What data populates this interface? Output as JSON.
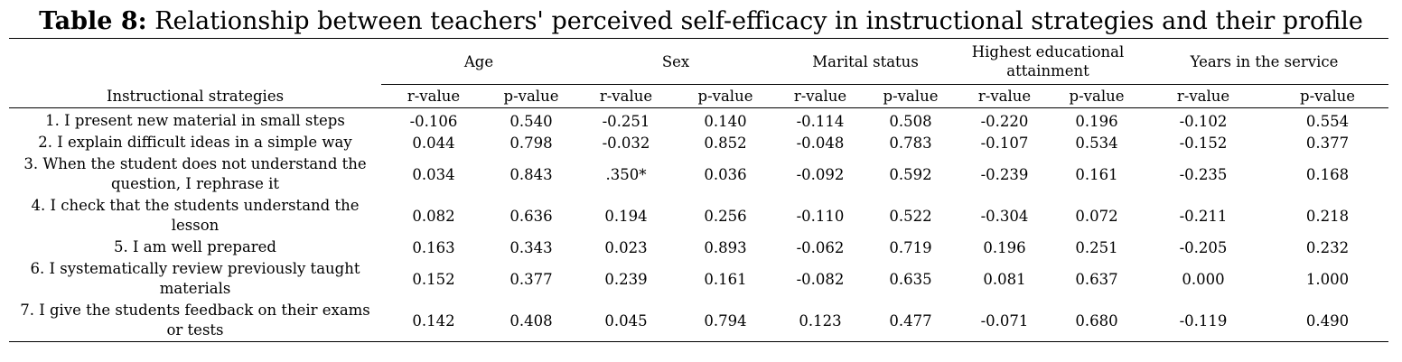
{
  "caption": {
    "label": "Table 8:",
    "text": "Relationship between teachers' perceived self-efficacy in instructional strategies and their profile"
  },
  "header": {
    "row_label": "Instructional strategies",
    "groups": [
      "Age",
      "Sex",
      "Marital status",
      "Highest educational attainment",
      "Years in the service"
    ],
    "sub": [
      "r-value",
      "p-value"
    ]
  },
  "rows": [
    {
      "item": "1. I present new material in small steps",
      "values": [
        "-0.106",
        "0.540",
        "-0.251",
        "0.140",
        "-0.114",
        "0.508",
        "-0.220",
        "0.196",
        "-0.102",
        "0.554"
      ]
    },
    {
      "item": "2. I explain difficult ideas in a simple way",
      "values": [
        "0.044",
        "0.798",
        "-0.032",
        "0.852",
        "-0.048",
        "0.783",
        "-0.107",
        "0.534",
        "-0.152",
        "0.377"
      ]
    },
    {
      "item": "3. When the student does not understand the question, I rephrase it",
      "values": [
        "0.034",
        "0.843",
        ".350*",
        "0.036",
        "-0.092",
        "0.592",
        "-0.239",
        "0.161",
        "-0.235",
        "0.168"
      ]
    },
    {
      "item": "4. I check that the students  understand the lesson",
      "values": [
        "0.082",
        "0.636",
        "0.194",
        "0.256",
        "-0.110",
        "0.522",
        "-0.304",
        "0.072",
        "-0.211",
        "0.218"
      ]
    },
    {
      "item": "5. I am well prepared",
      "values": [
        "0.163",
        "0.343",
        "0.023",
        "0.893",
        "-0.062",
        "0.719",
        "0.196",
        "0.251",
        "-0.205",
        "0.232"
      ]
    },
    {
      "item": "6. I systematically review previously taught materials",
      "values": [
        "0.152",
        "0.377",
        "0.239",
        "0.161",
        "-0.082",
        "0.635",
        "0.081",
        "0.637",
        "0.000",
        "1.000"
      ]
    },
    {
      "item": "7. I give the students feedback on their exams or tests",
      "values": [
        "0.142",
        "0.408",
        "0.045",
        "0.794",
        "0.123",
        "0.477",
        "-0.071",
        "0.680",
        "-0.119",
        "0.490"
      ]
    }
  ]
}
